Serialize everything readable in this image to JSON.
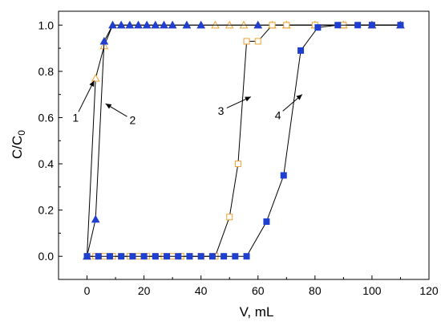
{
  "chart_data": {
    "type": "line",
    "xlabel": "V, mL",
    "ylabel_main": "C/C",
    "ylabel_sub": "0",
    "xlim": [
      -10,
      120
    ],
    "ylim": [
      -0.1,
      1.06
    ],
    "xticks": [
      0,
      20,
      40,
      60,
      80,
      100,
      120
    ],
    "xtick_labels": [
      "0",
      "20",
      "40",
      "60",
      "80",
      "100",
      "120"
    ],
    "yticks": [
      0.0,
      0.2,
      0.4,
      0.6,
      0.8,
      1.0
    ],
    "ytick_labels": [
      "0.0",
      "0.2",
      "0.4",
      "0.6",
      "0.8",
      "1.0"
    ],
    "line_color": "#000000",
    "series": [
      {
        "marker": "triangle-open",
        "color": "#F0A030",
        "x": [
          0,
          3,
          6,
          9,
          12,
          15,
          18,
          21,
          24,
          27,
          30,
          35,
          40,
          45,
          50,
          55,
          60,
          65,
          70,
          80,
          90,
          100,
          110
        ],
        "y": [
          0.0,
          0.77,
          0.91,
          1.0,
          1.0,
          1.0,
          1.0,
          1.0,
          1.0,
          1.0,
          1.0,
          1.0,
          1.0,
          1.0,
          1.0,
          1.0,
          1.0,
          1.0,
          1.0,
          1.0,
          1.0,
          1.0,
          1.0
        ]
      },
      {
        "marker": "triangle-filled",
        "color": "#1F3FD0",
        "x": [
          0,
          3,
          6,
          9,
          12,
          15,
          18,
          21,
          24,
          27,
          30,
          35,
          40,
          60,
          100,
          110
        ],
        "y": [
          0.0,
          0.16,
          0.93,
          1.0,
          1.0,
          1.0,
          1.0,
          1.0,
          1.0,
          1.0,
          1.0,
          1.0,
          1.0,
          1.0,
          1.0,
          1.0
        ]
      },
      {
        "marker": "square-open",
        "color": "#F0A030",
        "x": [
          0,
          3,
          6,
          9,
          12,
          15,
          18,
          21,
          24,
          27,
          30,
          33,
          36,
          40,
          45,
          50,
          53,
          56,
          60,
          65,
          70,
          80,
          90,
          100,
          110
        ],
        "y": [
          0.0,
          0.0,
          0.0,
          0.0,
          0.0,
          0.0,
          0.0,
          0.0,
          0.0,
          0.0,
          0.0,
          0.0,
          0.0,
          0.0,
          0.0,
          0.17,
          0.4,
          0.93,
          0.93,
          1.0,
          1.0,
          1.0,
          1.0,
          1.0,
          1.0
        ]
      },
      {
        "marker": "square-filled",
        "color": "#1F3FD0",
        "x": [
          0,
          4,
          8,
          12,
          16,
          20,
          24,
          28,
          32,
          36,
          40,
          44,
          48,
          52,
          56,
          63,
          69,
          75,
          81,
          88,
          95,
          100,
          110
        ],
        "y": [
          0.0,
          0.0,
          0.0,
          0.0,
          0.0,
          0.0,
          0.0,
          0.0,
          0.0,
          0.0,
          0.0,
          0.0,
          0.0,
          0.0,
          0.0,
          0.15,
          0.35,
          0.89,
          0.99,
          1.0,
          1.0,
          1.0,
          1.0
        ]
      }
    ],
    "annotations": [
      {
        "text": "1",
        "x": -4,
        "y": 0.6,
        "arrow_to": [
          2.5,
          0.76
        ]
      },
      {
        "text": "2",
        "x": 16,
        "y": 0.59,
        "arrow_to": [
          6.5,
          0.66
        ]
      },
      {
        "text": "3",
        "x": 47,
        "y": 0.63,
        "arrow_to": [
          57.5,
          0.69
        ]
      },
      {
        "text": "4",
        "x": 67,
        "y": 0.61,
        "arrow_to": [
          75.5,
          0.7
        ]
      }
    ]
  }
}
